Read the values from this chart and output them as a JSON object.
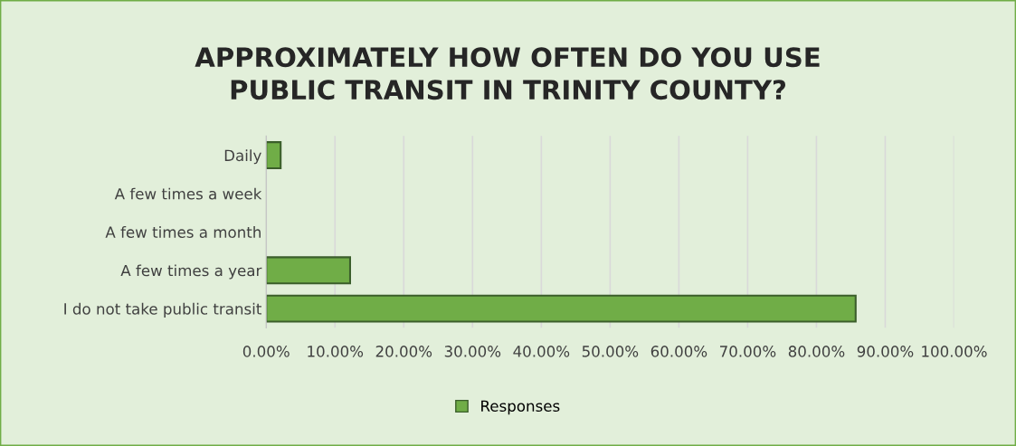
{
  "chart_data": {
    "type": "bar",
    "orientation": "horizontal",
    "title": "APPROXIMATELY HOW OFTEN DO YOU USE\nPUBLIC TRANSIT IN TRINITY COUNTY?",
    "categories": [
      "Daily",
      "A few times a week",
      "A few times a month",
      "A few times a year",
      "I do not take public transit"
    ],
    "series": [
      {
        "name": "Responses",
        "color": "#70ad47",
        "values": [
          2.1,
          0,
          0,
          12.2,
          85.7
        ]
      }
    ],
    "xlim": [
      0,
      100
    ],
    "xticks": [
      {
        "value": 0,
        "label": "0.00%"
      },
      {
        "value": 10,
        "label": "10.00%"
      },
      {
        "value": 20,
        "label": "20.00%"
      },
      {
        "value": 30,
        "label": "30.00%"
      },
      {
        "value": 40,
        "label": "40.00%"
      },
      {
        "value": 50,
        "label": "50.00%"
      },
      {
        "value": 60,
        "label": "60.00%"
      },
      {
        "value": 70,
        "label": "70.00%"
      },
      {
        "value": 80,
        "label": "80.00%"
      },
      {
        "value": 90,
        "label": "90.00%"
      },
      {
        "value": 100,
        "label": "100.00%"
      }
    ],
    "grid": "x",
    "legend": "bottom"
  }
}
